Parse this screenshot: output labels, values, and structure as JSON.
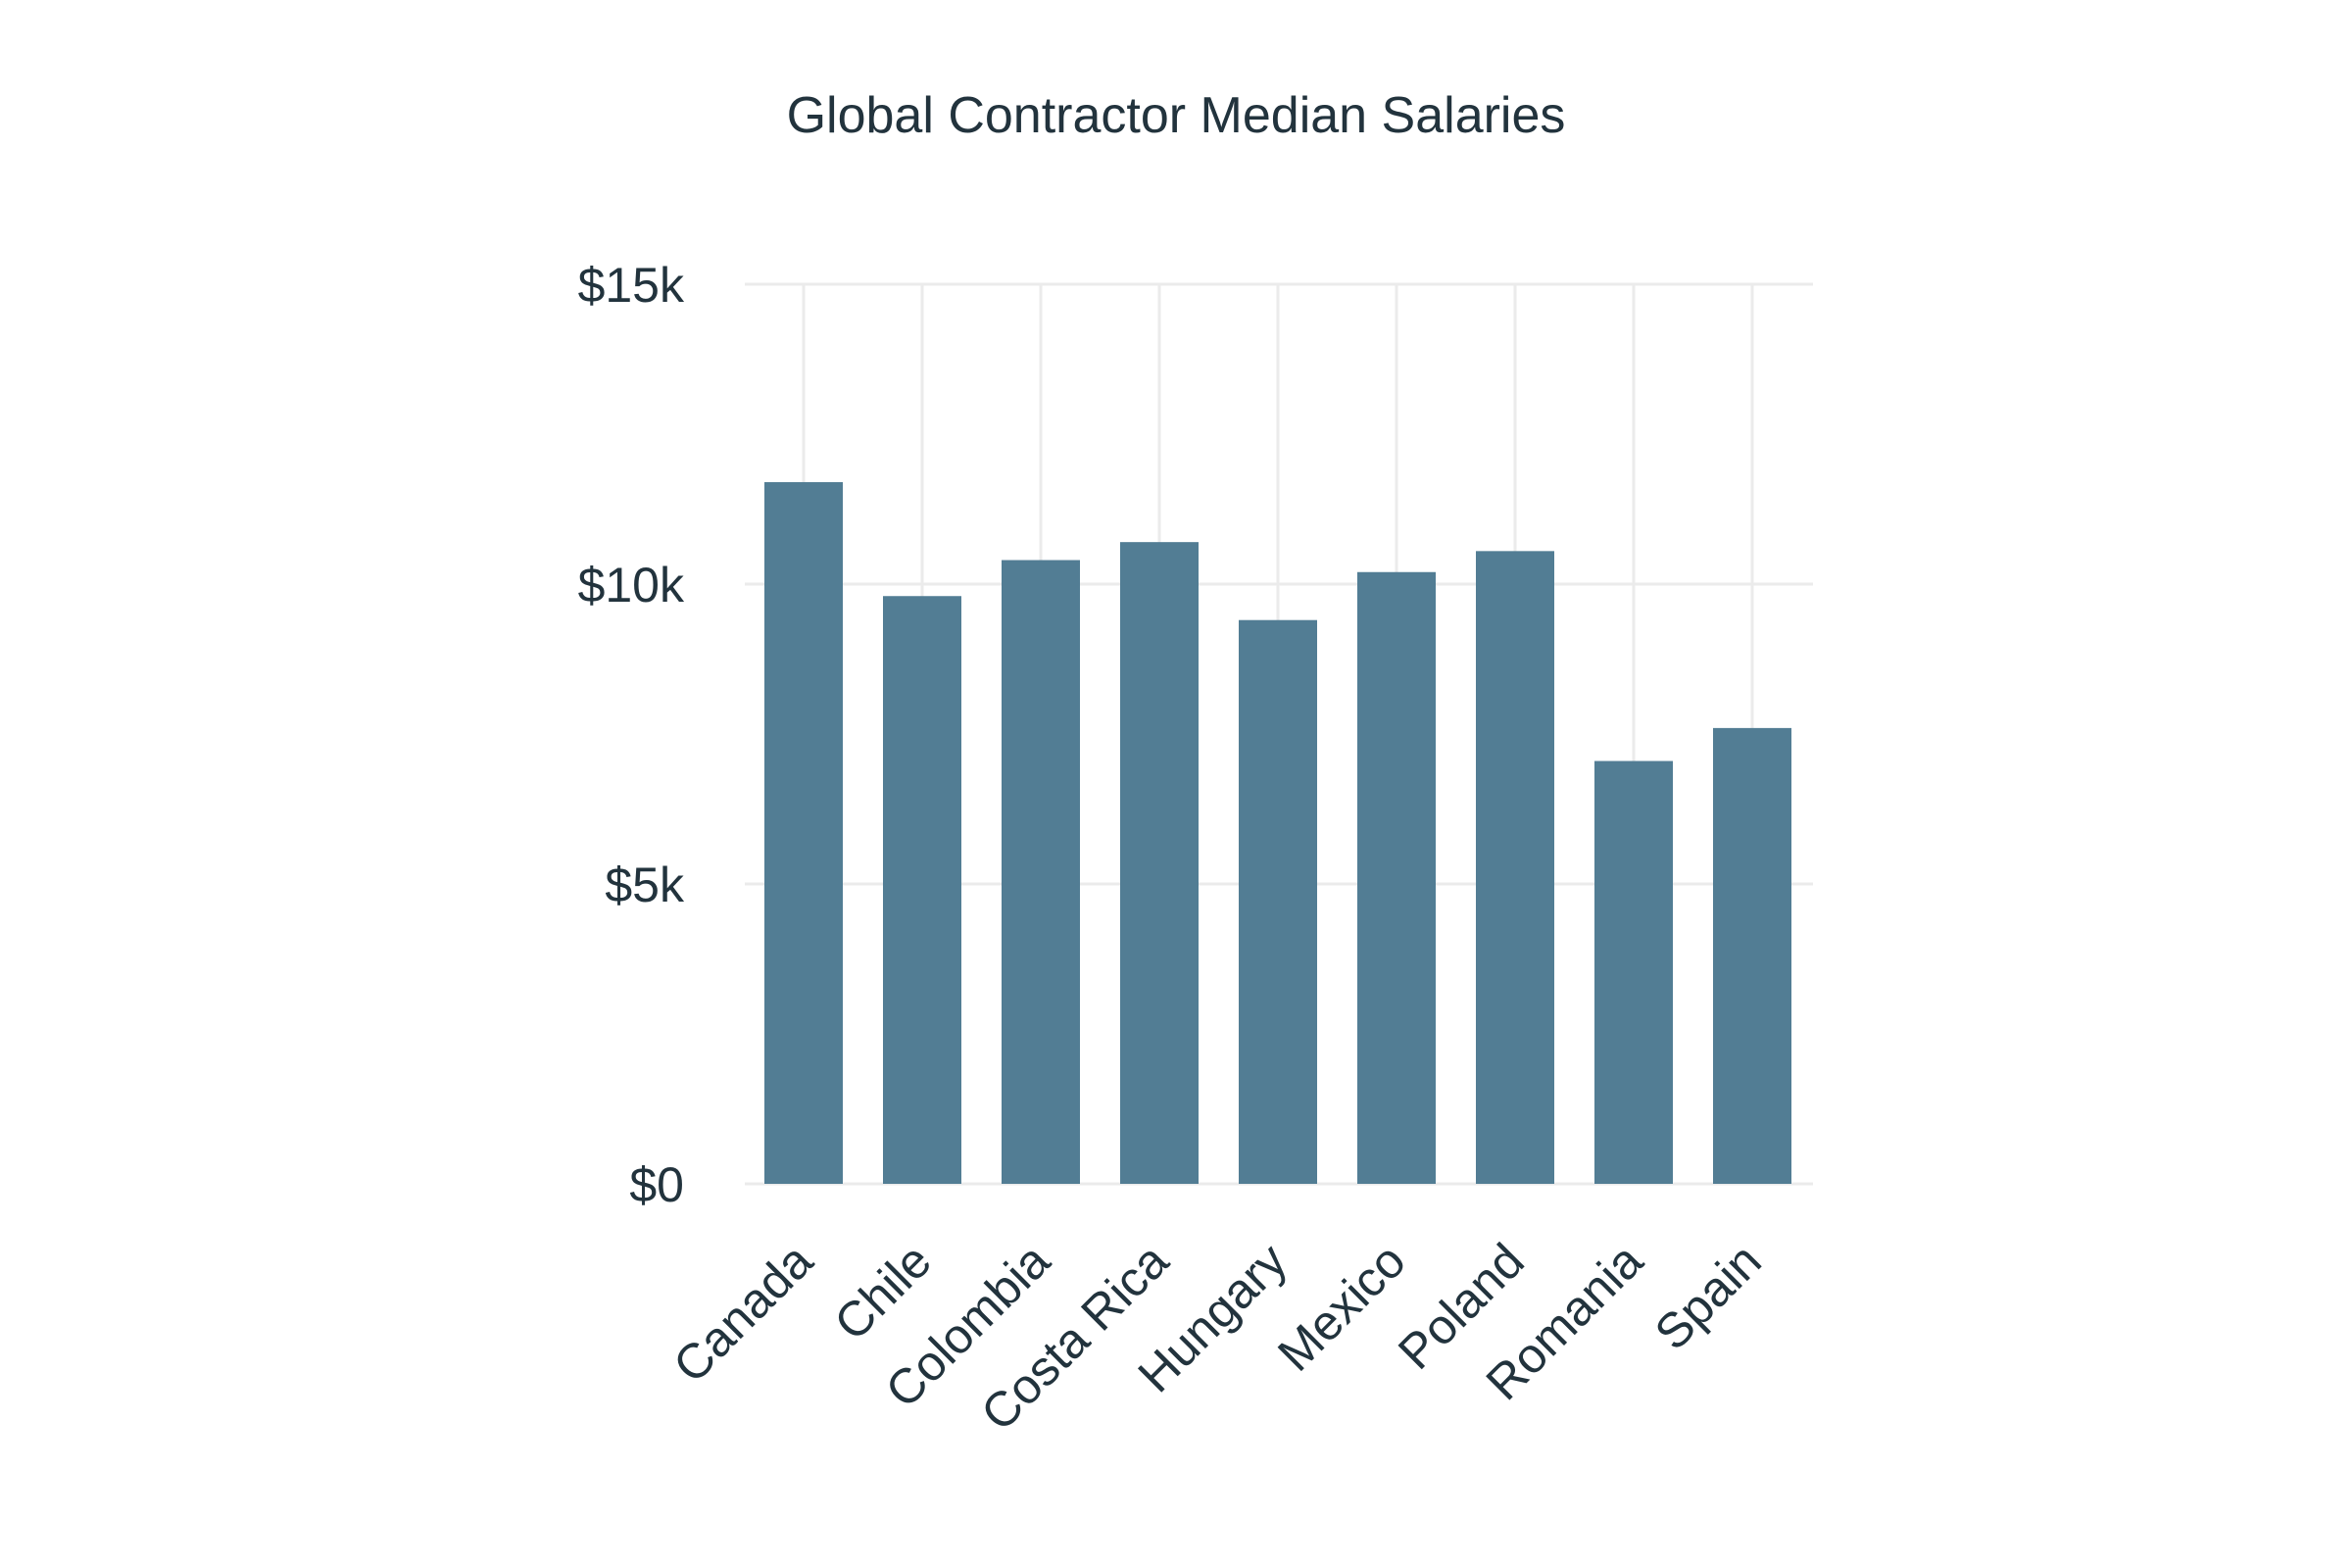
{
  "chart_data": {
    "type": "bar",
    "title": "Global Contractor Median Salaries",
    "xlabel": "",
    "ylabel": "",
    "categories": [
      "Canada",
      "Chile",
      "Colombia",
      "Costa Rica",
      "Hungary",
      "Mexico",
      "Poland",
      "Romania",
      "Spain"
    ],
    "values": [
      11700,
      9800,
      10400,
      10700,
      9400,
      10200,
      10550,
      7050,
      7600
    ],
    "ylim": [
      0,
      15000
    ],
    "yticks": [
      {
        "value": 0,
        "label": "$0"
      },
      {
        "value": 5000,
        "label": "$5k"
      },
      {
        "value": 10000,
        "label": "$10k"
      },
      {
        "value": 15000,
        "label": "$15k"
      }
    ],
    "grid": true,
    "legend": "none",
    "bar_color": "#527d94",
    "grid_color": "#ebebeb"
  }
}
